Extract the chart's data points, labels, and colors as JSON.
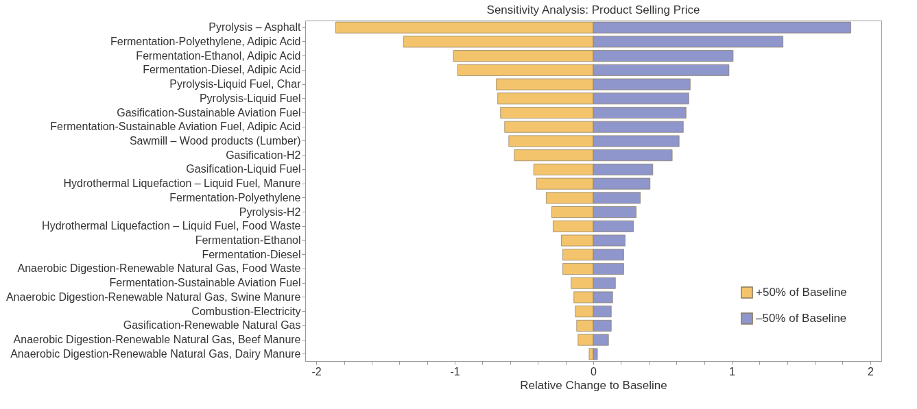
{
  "chart_data": {
    "type": "bar",
    "orientation": "horizontal",
    "title": "Sensitivity Analysis: Product Selling Price",
    "xlabel": "Relative Change to Baseline",
    "categories": [
      "Pyrolysis – Asphalt",
      "Fermentation-Polyethylene, Adipic Acid",
      "Fermentation-Ethanol, Adipic Acid",
      "Fermentation-Diesel, Adipic Acid",
      "Pyrolysis-Liquid Fuel, Char",
      "Pyrolysis-Liquid Fuel",
      "Gasification-Sustainable Aviation Fuel",
      "Fermentation-Sustainable Aviation Fuel, Adipic Acid",
      "Sawmill – Wood products (Lumber)",
      "Gasification-H2",
      "Gasification-Liquid Fuel",
      "Hydrothermal Liquefaction – Liquid Fuel, Manure",
      "Fermentation-Polyethylene",
      "Pyrolysis-H2",
      "Hydrothermal Liquefaction – Liquid Fuel, Food Waste",
      "Fermentation-Ethanol",
      "Fermentation-Diesel",
      "Anaerobic Digestion-Renewable Natural Gas, Food Waste",
      "Fermentation-Sustainable Aviation Fuel",
      "Anaerobic Digestion-Renewable Natural Gas, Swine Manure",
      "Combustion-Electricity",
      "Gasification-Renewable Natural Gas",
      "Anaerobic Digestion-Renewable Natural Gas, Beef Manure",
      "Anaerobic Digestion-Renewable Natural Gas, Dairy Manure"
    ],
    "series": [
      {
        "name": "+50% of Baseline",
        "color": "#f3c46c",
        "values": [
          -1.86,
          -1.37,
          -1.01,
          -0.98,
          -0.7,
          -0.69,
          -0.67,
          -0.64,
          -0.61,
          -0.57,
          -0.43,
          -0.41,
          -0.34,
          -0.3,
          -0.29,
          -0.23,
          -0.22,
          -0.22,
          -0.16,
          -0.14,
          -0.13,
          -0.12,
          -0.11,
          -0.03
        ]
      },
      {
        "name": "–50% of Baseline",
        "color": "#8e96cc",
        "values": [
          1.86,
          1.37,
          1.01,
          0.98,
          0.7,
          0.69,
          0.67,
          0.65,
          0.62,
          0.57,
          0.43,
          0.41,
          0.34,
          0.31,
          0.29,
          0.23,
          0.22,
          0.22,
          0.16,
          0.14,
          0.13,
          0.13,
          0.11,
          0.03
        ]
      }
    ],
    "xlim": [
      -2.08,
      2.08
    ],
    "xticks": [
      -2,
      {
        "value": -1.8,
        "label": null
      },
      {
        "value": -1.6,
        "label": null
      },
      {
        "value": -1.4,
        "label": null
      },
      {
        "value": -1.2,
        "label": null
      },
      -1,
      {
        "value": -0.8,
        "label": null
      },
      {
        "value": -0.6,
        "label": null
      },
      {
        "value": -0.4,
        "label": null
      },
      {
        "value": -0.2,
        "label": null
      },
      0,
      {
        "value": 0.2,
        "label": null
      },
      {
        "value": 0.4,
        "label": null
      },
      {
        "value": 0.6,
        "label": null
      },
      {
        "value": 0.8,
        "label": null
      },
      1,
      {
        "value": 1.2,
        "label": null
      },
      {
        "value": 1.4,
        "label": null
      },
      {
        "value": 1.6,
        "label": null
      },
      {
        "value": 1.8,
        "label": null
      },
      2
    ],
    "stacked": true,
    "grid": false,
    "legend": "bottom right"
  }
}
